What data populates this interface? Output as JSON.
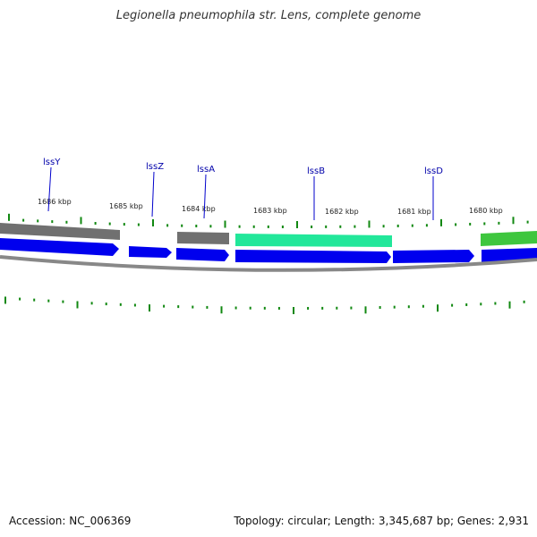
{
  "title": "Legionella pneumophila str. Lens, complete genome",
  "footer": {
    "accession": "Accession: NC_006369",
    "summary": "Topology: circular; Length: 3,345,687 bp; Genes: 2,931"
  },
  "colors": {
    "forward_cds": "#0000ee",
    "gray_feature": "#707070",
    "teal_feature": "#22e79a",
    "green_feature": "#3ec63e",
    "backbone": "#888888",
    "tick": "#118811",
    "gene_label": "#0000aa"
  },
  "scale_labels": [
    "1686 kbp",
    "1685 kbp",
    "1684 kbp",
    "1683 kbp",
    "1682 kbp",
    "1681 kbp",
    "1680 kbp"
  ],
  "gene_labels": [
    "lssY",
    "lssZ",
    "lssA",
    "lssB",
    "lssD"
  ]
}
